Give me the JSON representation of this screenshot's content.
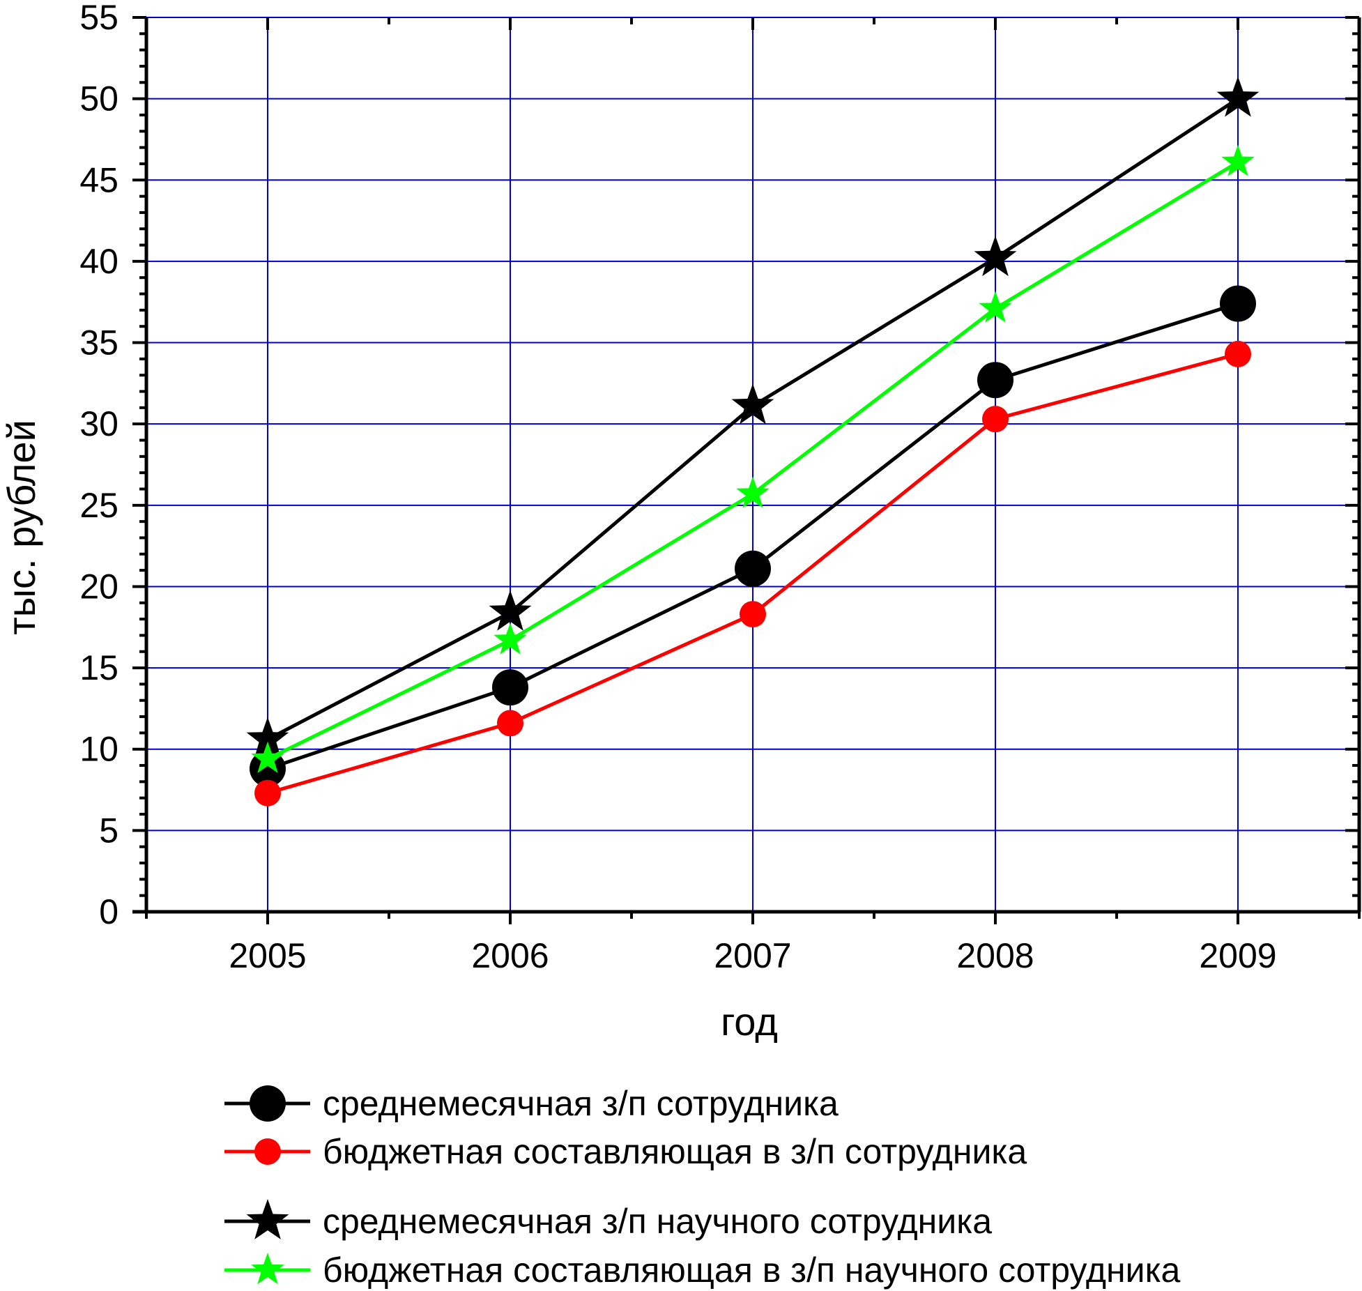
{
  "chart_data": {
    "type": "line",
    "title": "",
    "xlabel": "год",
    "ylabel": "тыс. рублей",
    "x": [
      2005,
      2006,
      2007,
      2008,
      2009
    ],
    "xlim": [
      2004.5,
      2009.5
    ],
    "ylim": [
      0,
      55
    ],
    "yticks": [
      0,
      5,
      10,
      15,
      20,
      25,
      30,
      35,
      40,
      45,
      50,
      55
    ],
    "xtick_labels": [
      "2005",
      "2006",
      "2007",
      "2008",
      "2009"
    ],
    "grid": true,
    "legend_position": "bottom",
    "series": [
      {
        "name": "среднемесячная з/п сотрудника",
        "values": [
          8.8,
          13.8,
          21.1,
          32.7,
          37.4
        ],
        "color": "#000000",
        "marker": "circle"
      },
      {
        "name": "бюджетная составляющая в з/п сотрудника",
        "values": [
          7.3,
          11.6,
          18.3,
          30.3,
          34.3
        ],
        "color": "#ff0000",
        "marker": "circle"
      },
      {
        "name": "среднемесячная з/п научного сотрудника",
        "values": [
          10.6,
          18.4,
          31.1,
          40.2,
          50.0
        ],
        "color": "#000000",
        "marker": "star"
      },
      {
        "name": "бюджетная составляющая в з/п научного сотрудника",
        "values": [
          9.4,
          16.7,
          25.7,
          37.1,
          46.1
        ],
        "color": "#00ff00",
        "marker": "star"
      }
    ],
    "colors": {
      "grid": "#0000cc",
      "axis": "#000000"
    }
  }
}
